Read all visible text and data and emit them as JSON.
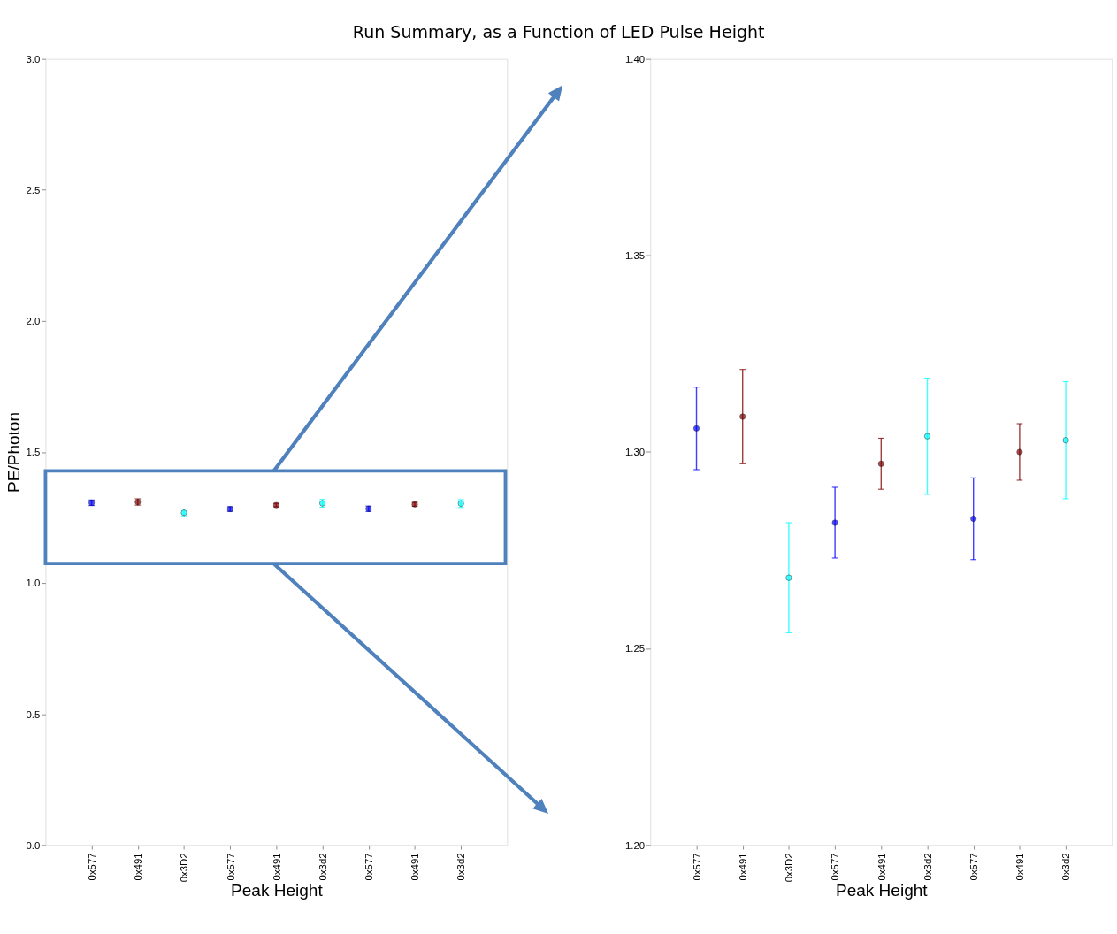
{
  "chart_data": [
    {
      "type": "scatter",
      "title": "Run Summary, as a Function of LED Pulse Height",
      "xlabel": "Peak Height",
      "ylabel": "PE/Photon",
      "categories": [
        "0x577",
        "0x491",
        "0x3D2",
        "0x577",
        "0x491",
        "0x3d2",
        "0x577",
        "0x491",
        "0x3d2"
      ],
      "values": [
        1.306,
        1.309,
        1.268,
        1.282,
        1.297,
        1.304,
        1.283,
        1.3,
        1.303
      ],
      "errors": [
        0.0105,
        0.012,
        0.014,
        0.009,
        0.0065,
        0.0148,
        0.0104,
        0.0072,
        0.0149
      ],
      "colors": [
        "#0000ff",
        "#800000",
        "#00ffff",
        "#0000ff",
        "#800000",
        "#00ffff",
        "#0000ff",
        "#800000",
        "#00ffff"
      ],
      "ylim": [
        0,
        3
      ],
      "yticks": [
        {
          "value": 0,
          "label": "0.0"
        },
        0.5,
        {
          "value": 1,
          "label": "1.0"
        },
        1.5,
        {
          "value": 2,
          "label": "2.0"
        },
        2.5,
        {
          "value": 3,
          "label": "3.0"
        }
      ],
      "marker": "circle",
      "grid": false
    },
    {
      "type": "scatter",
      "xlabel": "Peak Height",
      "categories": [
        "0x577",
        "0x491",
        "0x3D2",
        "0x577",
        "0x491",
        "0x3d2",
        "0x577",
        "0x491",
        "0x3d2"
      ],
      "values": [
        1.306,
        1.309,
        1.268,
        1.282,
        1.297,
        1.304,
        1.283,
        1.3,
        1.303
      ],
      "errors": [
        0.0105,
        0.012,
        0.014,
        0.009,
        0.0065,
        0.0148,
        0.0104,
        0.0072,
        0.0149
      ],
      "colors": [
        "#0000ff",
        "#800000",
        "#00ffff",
        "#0000ff",
        "#800000",
        "#00ffff",
        "#0000ff",
        "#800000",
        "#00ffff"
      ],
      "ylim": [
        1.2,
        1.4
      ],
      "yticks": [
        {
          "value": 1.2,
          "label": "1.20"
        },
        1.25,
        {
          "value": 1.3,
          "label": "1.30"
        },
        1.35,
        {
          "value": 1.4,
          "label": "1.40"
        }
      ],
      "marker": "circle",
      "grid": false
    }
  ]
}
